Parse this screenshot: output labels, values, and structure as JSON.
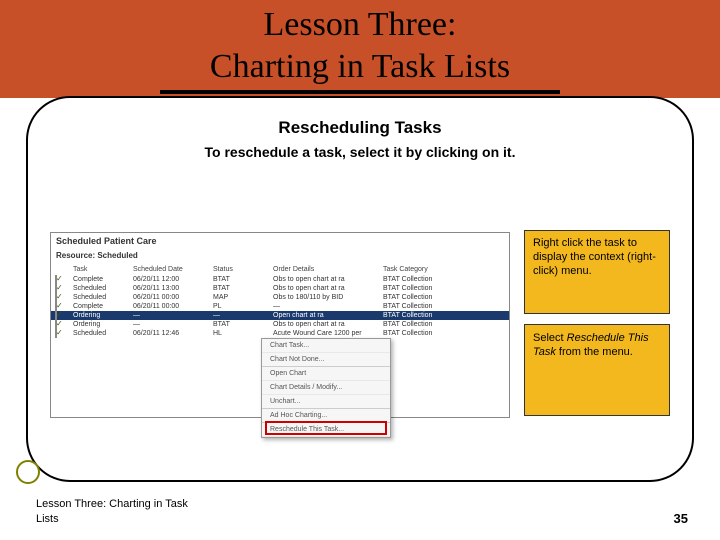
{
  "header": {
    "title_line1": "Lesson Three:",
    "title_line2": "Charting in Task Lists",
    "band_color": "#c85028"
  },
  "content": {
    "subtitle": "Rescheduling Tasks",
    "instruction": "To reschedule a task, select it by clicking on it."
  },
  "screenshot": {
    "window_title": "Scheduled Patient Care",
    "filter_label": "Resource: Scheduled",
    "columns": [
      "",
      "Task",
      "Scheduled Date",
      "Status",
      "Order Details",
      "Task Category"
    ],
    "rows": [
      {
        "task": "Complete",
        "date": "06/20/11  12:00",
        "status": "BTAT",
        "details": "Obs to open chart at ra",
        "cat": "BTAT Collection"
      },
      {
        "task": "Scheduled",
        "date": "06/20/11  13:00",
        "status": "BTAT",
        "details": "Obs to open chart at ra",
        "cat": "BTAT Collection"
      },
      {
        "task": "Scheduled",
        "date": "06/20/11  00:00",
        "status": "MAP",
        "details": "Obs to 180/110 by BID",
        "cat": "BTAT Collection"
      },
      {
        "task": "Complete",
        "date": "06/20/11  00:00",
        "status": "PL",
        "details": "—",
        "cat": "BTAT Collection"
      },
      {
        "task": "Ordering",
        "date": "—",
        "status": "—",
        "details": "Open chart at ra",
        "cat": "BTAT Collection",
        "selected": true
      },
      {
        "task": "Ordering",
        "date": "—",
        "status": "BTAT",
        "details": "Obs to open chart at ra",
        "cat": "BTAT Collection"
      },
      {
        "task": "Scheduled",
        "date": "06/20/11  12:46",
        "status": "HL",
        "details": "Acute Wound Care 1200 per",
        "cat": "BTAT Collection"
      }
    ],
    "context_menu": [
      "Chart Task...",
      "Chart Not Done...",
      "Open Chart",
      "Chart Details / Modify...",
      "Unchart...",
      "Ad Hoc Charting...",
      "Reschedule This Task..."
    ],
    "highlight_color": "#cc0000"
  },
  "callouts": {
    "c1": "Right click the task to display the context (right-click) menu.",
    "c2_prefix": "Select ",
    "c2_italic": "Reschedule This Task",
    "c2_suffix": " from the menu.",
    "bg_color": "#f2b81e"
  },
  "footer": {
    "text": "Lesson Three: Charting in Task Lists",
    "page": "35"
  }
}
